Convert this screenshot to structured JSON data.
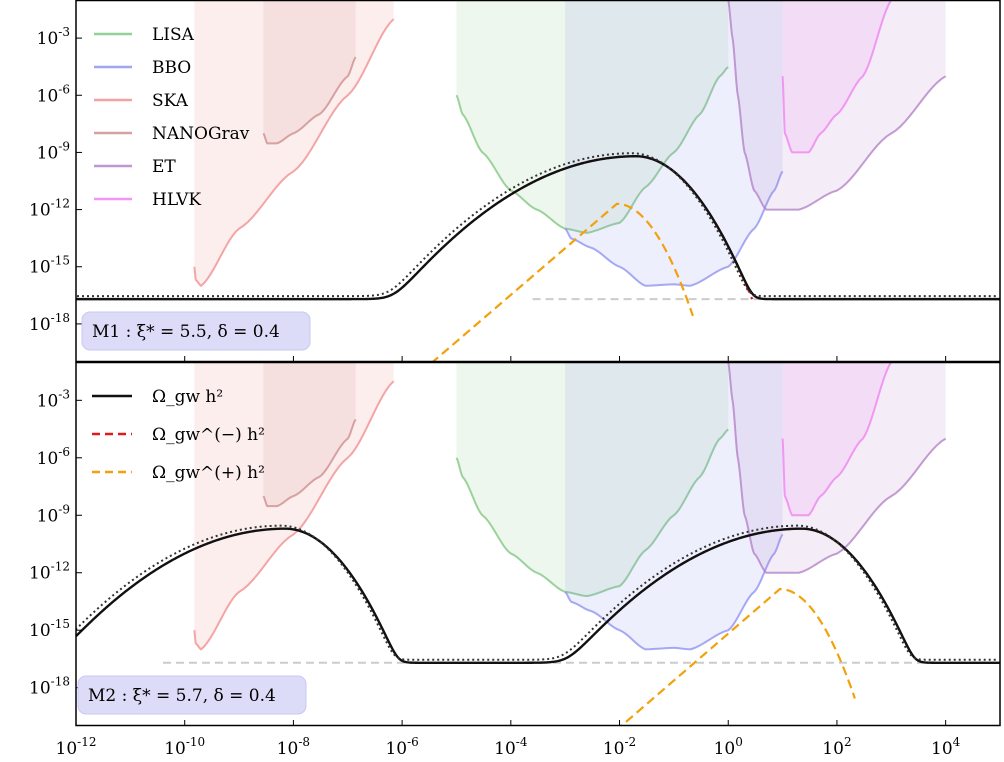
{
  "figure": {
    "x_axis": {
      "scale": "log",
      "range": [
        1e-12,
        100000.0
      ],
      "tick_exponents": [
        -12,
        -10,
        -8,
        -6,
        -4,
        -2,
        0,
        2,
        4
      ],
      "tick_labels": [
        "10^-12",
        "10^-10",
        "10^-8",
        "10^-6",
        "10^-4",
        "10^-2",
        "10^0",
        "10^2",
        "10^4"
      ]
    },
    "y_axis": {
      "scale": "log",
      "range": [
        1e-20,
        0.1
      ],
      "tick_exponents": [
        -18,
        -15,
        -12,
        -9,
        -6,
        -3
      ],
      "tick_labels": [
        "10^-18",
        "10^-15",
        "10^-12",
        "10^-9",
        "10^-6",
        "10^-3"
      ]
    },
    "colors": {
      "LISA": "#7cc47c",
      "BBO": "#8a8ef0",
      "SKA": "#f08a8a",
      "NANOGrav": "#c98a8a",
      "ET": "#b07cc4",
      "HLVK": "#f07cf0",
      "total": "#111111",
      "minus": "#e01a1a",
      "plus": "#f2a10c",
      "baseline": "#cccccc"
    }
  },
  "chart_data": [
    {
      "type": "line",
      "panel": "top",
      "annotation_prefix": "M1 : ",
      "annotation": "ξ* = 5.5, δ = 0.4",
      "legend": {
        "placement": "top-left",
        "entries": [
          "LISA",
          "BBO",
          "SKA",
          "NANOGrav",
          "ET",
          "HLVK"
        ]
      },
      "sensitivity_curves": [
        {
          "name": "LISA",
          "x": [
            1e-05,
            1.3e-05,
            3e-05,
            0.0001,
            0.0003,
            0.001,
            0.0025,
            0.01,
            0.03,
            0.1,
            0.3,
            0.7,
            1.0
          ],
          "y": [
            1e-06,
            1e-07,
            1e-09,
            1e-11,
            1e-12,
            1e-13,
            6e-14,
            2e-13,
            1.5e-11,
            1e-09,
            1e-07,
            1e-05,
            3e-05
          ]
        },
        {
          "name": "BBO",
          "x": [
            0.001,
            0.0013,
            0.003,
            0.01,
            0.03,
            0.1,
            0.2,
            1.0,
            3.0,
            7.0,
            10.0
          ],
          "y": [
            1e-13,
            3e-14,
            1e-14,
            1e-15,
            1e-16,
            1.2e-16,
            1e-16,
            1e-15,
            1e-13,
            1e-11,
            1e-10
          ]
        },
        {
          "name": "SKA",
          "x": [
            1.5e-10,
            1.6e-10,
            2e-10,
            1e-09,
            1e-08,
            1e-07,
            7e-07
          ],
          "y": [
            1e-15,
            2e-16,
            1e-16,
            1e-13,
            1e-10,
            1e-06,
            0.01
          ]
        },
        {
          "name": "NANOGrav",
          "x": [
            2.8e-09,
            3.3e-09,
            5e-09,
            1e-08,
            3e-08,
            1e-07,
            1.4e-07
          ],
          "y": [
            1e-08,
            3e-09,
            3e-09,
            1e-08,
            1e-07,
            1e-05,
            0.0001
          ]
        },
        {
          "name": "ET",
          "x": [
            1.0,
            1.2,
            1.5,
            2.0,
            3.0,
            5.0,
            10.0,
            20.0,
            100.0,
            1000.0,
            10000.0
          ],
          "y": [
            0.1,
            0.001,
            1e-06,
            1e-09,
            1e-11,
            1e-12,
            1e-12,
            1e-12,
            1e-11,
            1e-08,
            1e-05
          ]
        },
        {
          "name": "HLVK",
          "x": [
            10.0,
            11.0,
            15.0,
            20.0,
            30.0,
            50.0,
            100.0,
            300.0,
            1000.0
          ],
          "y": [
            1e-05,
            1e-08,
            1e-09,
            1e-09,
            1e-09,
            1e-08,
            1e-07,
            1e-05,
            0.1
          ]
        }
      ]
    },
    {
      "type": "line",
      "panel": "bottom",
      "annotation_prefix": "M2 : ",
      "annotation": "ξ* = 5.7, δ = 0.4",
      "legend": {
        "placement": "top-left",
        "entries": [
          "Ω_gw h²",
          "Ω_gw^(−) h²",
          "Ω_gw^(+) h²"
        ]
      },
      "sensitivity_curves": [
        {
          "name": "LISA",
          "x": [
            1e-05,
            1.3e-05,
            3e-05,
            0.0001,
            0.0003,
            0.001,
            0.0025,
            0.01,
            0.03,
            0.1,
            0.3,
            0.7,
            1.0
          ],
          "y": [
            1e-06,
            1e-07,
            1e-09,
            1e-11,
            1e-12,
            1e-13,
            6e-14,
            2e-13,
            1.5e-11,
            1e-09,
            1e-07,
            1e-05,
            3e-05
          ]
        },
        {
          "name": "BBO",
          "x": [
            0.001,
            0.0013,
            0.003,
            0.01,
            0.03,
            0.1,
            0.2,
            1.0,
            3.0,
            7.0,
            10.0
          ],
          "y": [
            1e-13,
            3e-14,
            1e-14,
            1e-15,
            1e-16,
            1.2e-16,
            1e-16,
            1e-15,
            1e-13,
            1e-11,
            1e-10
          ]
        },
        {
          "name": "SKA",
          "x": [
            1.5e-10,
            1.6e-10,
            2e-10,
            1e-09,
            1e-08,
            1e-07,
            7e-07
          ],
          "y": [
            1e-15,
            2e-16,
            1e-16,
            1e-13,
            1e-10,
            1e-06,
            0.01
          ]
        },
        {
          "name": "NANOGrav",
          "x": [
            2.8e-09,
            3.3e-09,
            5e-09,
            1e-08,
            3e-08,
            1e-07,
            1.4e-07
          ],
          "y": [
            1e-08,
            3e-09,
            3e-09,
            1e-08,
            1e-07,
            1e-05,
            0.0001
          ]
        },
        {
          "name": "ET",
          "x": [
            1.0,
            1.2,
            1.5,
            2.0,
            3.0,
            5.0,
            10.0,
            20.0,
            100.0,
            1000.0,
            10000.0
          ],
          "y": [
            0.1,
            0.001,
            1e-06,
            1e-09,
            1e-11,
            1e-12,
            1e-12,
            1e-12,
            1e-11,
            1e-08,
            1e-05
          ]
        },
        {
          "name": "HLVK",
          "x": [
            10.0,
            11.0,
            15.0,
            20.0,
            30.0,
            50.0,
            100.0,
            300.0,
            1000.0
          ],
          "y": [
            1e-05,
            1e-08,
            1e-09,
            1e-09,
            1e-09,
            1e-08,
            1e-07,
            1e-05,
            0.1
          ]
        }
      ]
    }
  ]
}
